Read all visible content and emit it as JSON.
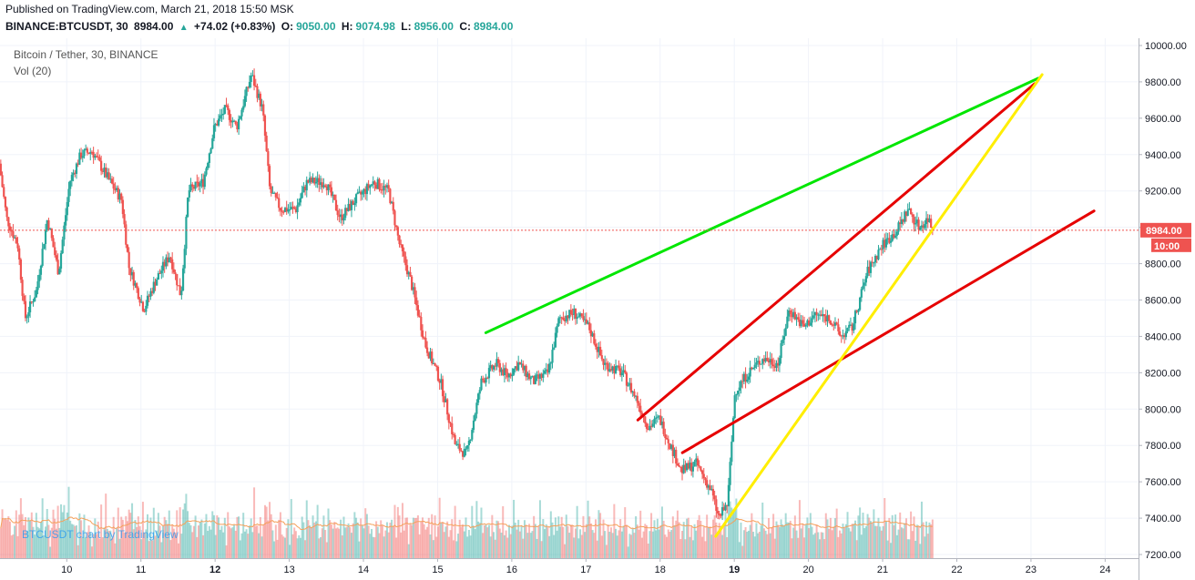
{
  "header": {
    "published": "Published on TradingView.com, March 21, 2018 15:50 MSK",
    "symbol": "BINANCE:BTCUSDT, 30",
    "last": "8984.00",
    "change": "+74.02 (+0.83%)",
    "o_label": "O:",
    "o_value": "9050.00",
    "h_label": "H:",
    "h_value": "9074.98",
    "l_label": "L:",
    "l_value": "8956.00",
    "c_label": "C:",
    "c_value": "8984.00"
  },
  "overlay": {
    "title": "Bitcoin / Tether, 30, BINANCE",
    "vol": "Vol (20)",
    "watermark": "BTCUSDT chart by TradingView"
  },
  "chart_data": {
    "type": "candlestick",
    "title": "Bitcoin / Tether, 30, BINANCE",
    "x_tick_labels": [
      "10",
      "11",
      "12",
      "13",
      "14",
      "15",
      "16",
      "17",
      "18",
      "19",
      "20",
      "21",
      "22",
      "23",
      "24"
    ],
    "x_tick_days": [
      10,
      11,
      12,
      13,
      14,
      15,
      16,
      17,
      18,
      19,
      20,
      21,
      22,
      23,
      24
    ],
    "bold_ticks": [
      "12",
      "19"
    ],
    "xlim": [
      9.1,
      24.45
    ],
    "y_tick_labels": [
      "7200.00",
      "7400.00",
      "7600.00",
      "7800.00",
      "8000.00",
      "8200.00",
      "8400.00",
      "8600.00",
      "8800.00",
      "9000.00",
      "9200.00",
      "9400.00",
      "9600.00",
      "9800.00",
      "10000.00"
    ],
    "y_ticks": [
      7200,
      7400,
      7600,
      7800,
      8000,
      8200,
      8400,
      8600,
      8800,
      9000,
      9200,
      9400,
      9600,
      9800,
      10000
    ],
    "ylim": [
      7180,
      10040
    ],
    "last_price": 8984,
    "last_price_label": "8984.00",
    "countdown_label": "10:00",
    "price_path": [
      [
        9.1,
        9350
      ],
      [
        9.2,
        9050
      ],
      [
        9.35,
        8900
      ],
      [
        9.45,
        8500
      ],
      [
        9.6,
        8650
      ],
      [
        9.75,
        9050
      ],
      [
        9.9,
        8750
      ],
      [
        10.05,
        9250
      ],
      [
        10.2,
        9400
      ],
      [
        10.35,
        9420
      ],
      [
        10.55,
        9280
      ],
      [
        10.75,
        9150
      ],
      [
        10.85,
        8780
      ],
      [
        11.05,
        8550
      ],
      [
        11.2,
        8700
      ],
      [
        11.4,
        8850
      ],
      [
        11.55,
        8620
      ],
      [
        11.65,
        9200
      ],
      [
        11.85,
        9250
      ],
      [
        12.0,
        9550
      ],
      [
        12.15,
        9650
      ],
      [
        12.3,
        9550
      ],
      [
        12.5,
        9840
      ],
      [
        12.65,
        9650
      ],
      [
        12.75,
        9200
      ],
      [
        12.9,
        9100
      ],
      [
        13.1,
        9100
      ],
      [
        13.25,
        9250
      ],
      [
        13.5,
        9250
      ],
      [
        13.7,
        9050
      ],
      [
        13.9,
        9150
      ],
      [
        14.15,
        9250
      ],
      [
        14.35,
        9200
      ],
      [
        14.5,
        8900
      ],
      [
        14.65,
        8700
      ],
      [
        14.85,
        8350
      ],
      [
        15.05,
        8150
      ],
      [
        15.25,
        7800
      ],
      [
        15.4,
        7750
      ],
      [
        15.6,
        8150
      ],
      [
        15.8,
        8250
      ],
      [
        15.95,
        8180
      ],
      [
        16.1,
        8250
      ],
      [
        16.3,
        8150
      ],
      [
        16.5,
        8200
      ],
      [
        16.65,
        8500
      ],
      [
        16.85,
        8530
      ],
      [
        17.05,
        8450
      ],
      [
        17.25,
        8250
      ],
      [
        17.5,
        8200
      ],
      [
        17.7,
        8050
      ],
      [
        17.85,
        7900
      ],
      [
        18.0,
        7950
      ],
      [
        18.15,
        7800
      ],
      [
        18.3,
        7660
      ],
      [
        18.5,
        7700
      ],
      [
        18.7,
        7550
      ],
      [
        18.8,
        7400
      ],
      [
        18.92,
        7480
      ],
      [
        19.02,
        8100
      ],
      [
        19.2,
        8200
      ],
      [
        19.4,
        8280
      ],
      [
        19.6,
        8250
      ],
      [
        19.75,
        8550
      ],
      [
        19.95,
        8450
      ],
      [
        20.1,
        8520
      ],
      [
        20.3,
        8500
      ],
      [
        20.45,
        8400
      ],
      [
        20.6,
        8450
      ],
      [
        20.8,
        8750
      ],
      [
        21.0,
        8900
      ],
      [
        21.2,
        8980
      ],
      [
        21.35,
        9100
      ],
      [
        21.5,
        9000
      ],
      [
        21.63,
        9050
      ],
      [
        21.68,
        8984
      ]
    ],
    "volume_pattern": [
      2,
      3,
      2,
      4,
      3,
      2,
      5,
      3,
      2,
      3,
      4,
      2,
      3,
      6,
      2,
      3,
      2,
      4,
      3,
      2,
      7,
      3,
      2,
      3
    ],
    "lines": [
      {
        "name": "green",
        "color": "#00e600",
        "from": [
          15.65,
          8420
        ],
        "to": [
          23.1,
          9820
        ]
      },
      {
        "name": "red-upper",
        "color": "#e60000",
        "from": [
          17.7,
          7940
        ],
        "to": [
          23.05,
          9790
        ]
      },
      {
        "name": "red-lower",
        "color": "#e60000",
        "from": [
          18.3,
          7760
        ],
        "to": [
          23.85,
          9090
        ]
      },
      {
        "name": "yellow",
        "color": "#ffee00",
        "from": [
          18.75,
          7300
        ],
        "to": [
          23.15,
          9840
        ]
      }
    ],
    "colors": {
      "up": "#26a69a",
      "down": "#ef5350",
      "ma": "#f5a05a",
      "price_line": "#ef5350"
    }
  }
}
